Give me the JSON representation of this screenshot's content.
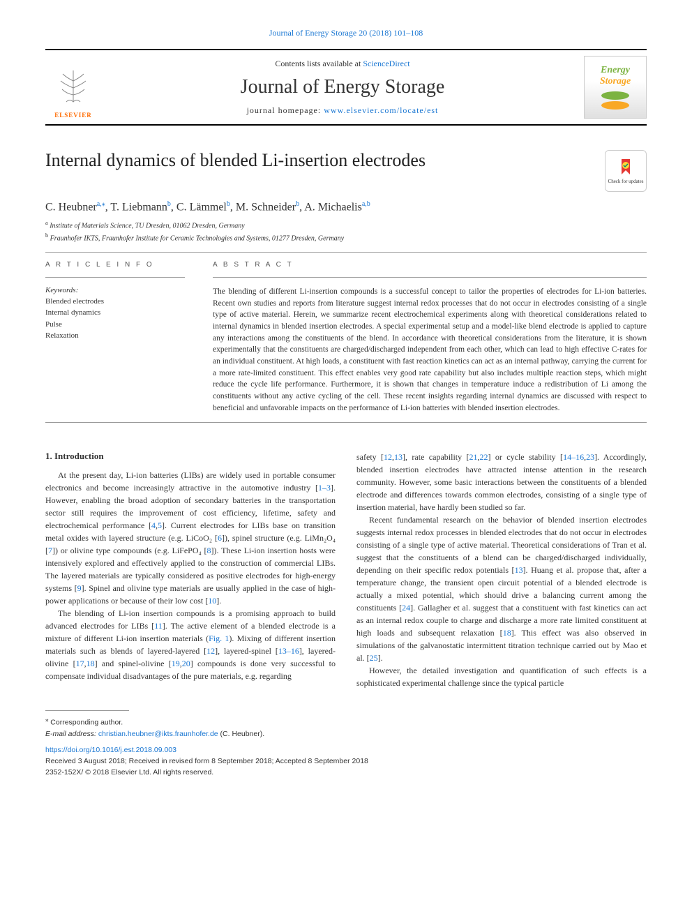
{
  "top_citation": "Journal of Energy Storage 20 (2018) 101–108",
  "header": {
    "contents_prefix": "Contents lists available at ",
    "contents_link": "ScienceDirect",
    "journal_name": "Journal of Energy Storage",
    "homepage_prefix": "journal homepage: ",
    "homepage_link": "www.elsevier.com/locate/est",
    "elsevier_label": "ELSEVIER",
    "journal_logo_line1": "Energy",
    "journal_logo_line2": "Storage"
  },
  "check_updates_label": "Check for updates",
  "title": "Internal dynamics of blended Li-insertion electrodes",
  "authors_html": "C. Heubner<sup>a,</sup><sup class='star'>⁎</sup>, T. Liebmann<sup>b</sup>, C. Lämmel<sup>b</sup>, M. Schneider<sup>b</sup>, A. Michaelis<sup>a,b</sup>",
  "affiliations": [
    {
      "sup": "a",
      "text": "Institute of Materials Science, TU Dresden, 01062 Dresden, Germany"
    },
    {
      "sup": "b",
      "text": "Fraunhofer IKTS, Fraunhofer Institute for Ceramic Technologies and Systems, 01277 Dresden, Germany"
    }
  ],
  "article_info_label": "A R T I C L E  I N F O",
  "abstract_label": "A B S T R A C T",
  "keywords_label": "Keywords:",
  "keywords": [
    "Blended electrodes",
    "Internal dynamics",
    "Pulse",
    "Relaxation"
  ],
  "abstract": "The blending of different Li-insertion compounds is a successful concept to tailor the properties of electrodes for Li-ion batteries. Recent own studies and reports from literature suggest internal redox processes that do not occur in electrodes consisting of a single type of active material. Herein, we summarize recent electrochemical experiments along with theoretical considerations related to internal dynamics in blended insertion electrodes. A special experimental setup and a model-like blend electrode is applied to capture any interactions among the constituents of the blend. In accordance with theoretical considerations from the literature, it is shown experimentally that the constituents are charged/discharged independent from each other, which can lead to high effective C-rates for an individual constituent. At high loads, a constituent with fast reaction kinetics can act as an internal pathway, carrying the current for a more rate-limited constituent. This effect enables very good rate capability but also includes multiple reaction steps, which might reduce the cycle life performance. Furthermore, it is shown that changes in temperature induce a redistribution of Li among the constituents without any active cycling of the cell. These recent insights regarding internal dynamics are discussed with respect to beneficial and unfavorable impacts on the performance of Li-ion batteries with blended insertion electrodes.",
  "intro_heading": "1. Introduction",
  "left_paras": [
    "At the present day, Li-ion batteries (LIBs) are widely used in portable consumer electronics and become increasingly attractive in the automotive industry [<span class='ref'>1–3</span>]. However, enabling the broad adoption of secondary batteries in the transportation sector still requires the improvement of cost efficiency, lifetime, safety and electrochemical performance [<span class='ref'>4</span>,<span class='ref'>5</span>]. Current electrodes for LIBs base on transition metal oxides with layered structure (e.g. LiCoO₂ [<span class='ref'>6</span>]), spinel structure (e.g. LiMn₂O₄ [<span class='ref'>7</span>]) or olivine type compounds (e.g. LiFePO₄ [<span class='ref'>8</span>]). These Li-ion insertion hosts were intensively explored and effectively applied to the construction of commercial LIBs. The layered materials are typically considered as positive electrodes for high-energy systems [<span class='ref'>9</span>]. Spinel and olivine type materials are usually applied in the case of high-power applications or because of their low cost [<span class='ref'>10</span>].",
    "The blending of Li-ion insertion compounds is a promising approach to build advanced electrodes for LIBs [<span class='ref'>11</span>]. The active element of a blended electrode is a mixture of different Li-ion insertion materials (<span class='ref'>Fig. 1</span>). Mixing of different insertion materials such as blends of layered-layered [<span class='ref'>12</span>], layered-spinel [<span class='ref'>13–16</span>], layered-olivine [<span class='ref'>17</span>,<span class='ref'>18</span>] and spinel-olivine [<span class='ref'>19</span>,<span class='ref'>20</span>] compounds is done very successful to compensate individual disadvantages of the pure materials, e.g. regarding"
  ],
  "right_paras": [
    "safety [<span class='ref'>12</span>,<span class='ref'>13</span>], rate capability [<span class='ref'>21</span>,<span class='ref'>22</span>] or cycle stability [<span class='ref'>14–16</span>,<span class='ref'>23</span>]. Accordingly, blended insertion electrodes have attracted intense attention in the research community. However, some basic interactions between the constituents of a blended electrode and differences towards common electrodes, consisting of a single type of insertion material, have hardly been studied so far.",
    "Recent fundamental research on the behavior of blended insertion electrodes suggests internal redox processes in blended electrodes that do not occur in electrodes consisting of a single type of active material. Theoretical considerations of Tran et al. suggest that the constituents of a blend can be charged/discharged individually, depending on their specific redox potentials [<span class='ref'>13</span>]. Huang et al. propose that, after a temperature change, the transient open circuit potential of a blended electrode is actually a mixed potential, which should drive a balancing current among the constituents [<span class='ref'>24</span>]. Gallagher et al. suggest that a constituent with fast kinetics can act as an internal redox couple to charge and discharge a more rate limited constituent at high loads and subsequent relaxation [<span class='ref'>18</span>]. This effect was also observed in simulations of the galvanostatic intermittent titration technique carried out by Mao et al. [<span class='ref'>25</span>].",
    "However, the detailed investigation and quantification of such effects is a sophisticated experimental challenge since the typical particle"
  ],
  "footer": {
    "corresponding": "Corresponding author.",
    "email_label": "E-mail address: ",
    "email": "christian.heubner@ikts.fraunhofer.de",
    "email_author": " (C. Heubner).",
    "doi": "https://doi.org/10.1016/j.est.2018.09.003",
    "received": "Received 3 August 2018; Received in revised form 8 September 2018; Accepted 8 September 2018",
    "copyright": "2352-152X/ © 2018 Elsevier Ltd. All rights reserved."
  },
  "colors": {
    "link": "#1976d2",
    "elsevier_orange": "#ff6a00",
    "energy_green": "#7cb342",
    "storage_orange": "#f9a825"
  }
}
